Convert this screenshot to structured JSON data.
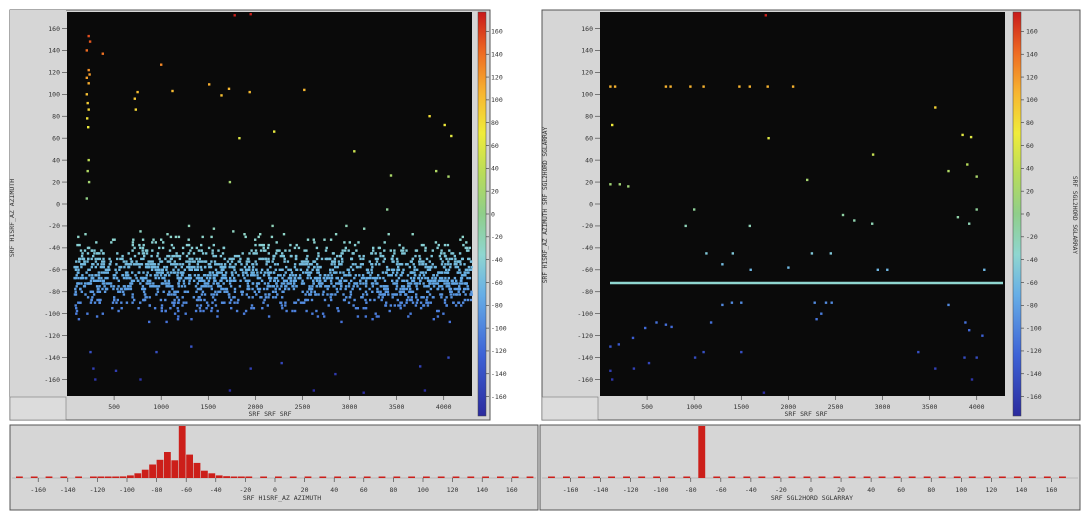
{
  "colors": {
    "panel_bg": "#d6d6d6",
    "plot_bg": "#0a0a0a",
    "frame": "#555555",
    "hist_bar": "#cc1f1a",
    "line_overlay": "#8fd6d0"
  },
  "colorbar": {
    "ticks": [
      "160",
      "140",
      "120",
      "100",
      "80",
      "60",
      "40",
      "20",
      "0",
      "-20",
      "-40",
      "-60",
      "-80",
      "-100",
      "-120",
      "-140",
      "-160"
    ],
    "range": [
      -170,
      175
    ]
  },
  "chart_data": [
    {
      "type": "scatter",
      "ylabel": "SRF H1SRF_AZ AZIMUTH",
      "xlabel": "SRF SRF SRF",
      "colorbar_label": "",
      "xlim": [
        0,
        4300
      ],
      "ylim": [
        -175,
        175
      ],
      "xticks": [
        "500",
        "1000",
        "1500",
        "2000",
        "2500",
        "3000",
        "3500",
        "4000"
      ],
      "yticks": [
        "160",
        "140",
        "120",
        "100",
        "80",
        "60",
        "40",
        "20",
        "0",
        "-20",
        "-40",
        "-60",
        "-80",
        "-100",
        "-120",
        "-140",
        "-160"
      ],
      "band": {
        "x_range": [
          80,
          4300
        ],
        "y_center": -66,
        "y_spread": 32,
        "count": 1900
      },
      "points": [
        [
          230,
          153
        ],
        [
          245,
          148
        ],
        [
          210,
          140
        ],
        [
          380,
          137
        ],
        [
          230,
          122
        ],
        [
          240,
          118
        ],
        [
          210,
          115
        ],
        [
          230,
          110
        ],
        [
          210,
          100
        ],
        [
          220,
          92
        ],
        [
          230,
          86
        ],
        [
          215,
          78
        ],
        [
          225,
          70
        ],
        [
          230,
          40
        ],
        [
          220,
          30
        ],
        [
          235,
          20
        ],
        [
          210,
          5
        ],
        [
          750,
          102
        ],
        [
          720,
          96
        ],
        [
          730,
          86
        ],
        [
          1000,
          127
        ],
        [
          1120,
          103
        ],
        [
          1510,
          109
        ],
        [
          1720,
          105
        ],
        [
          1940,
          102
        ],
        [
          2520,
          104
        ],
        [
          1640,
          99
        ],
        [
          2200,
          66
        ],
        [
          1830,
          60
        ],
        [
          3050,
          48
        ],
        [
          3440,
          26
        ],
        [
          3850,
          80
        ],
        [
          4010,
          72
        ],
        [
          4080,
          62
        ],
        [
          3920,
          30
        ],
        [
          4050,
          25
        ],
        [
          1730,
          20
        ],
        [
          3400,
          -5
        ],
        [
          250,
          -135
        ],
        [
          280,
          -150
        ],
        [
          300,
          -160
        ],
        [
          520,
          -152
        ],
        [
          780,
          -160
        ],
        [
          950,
          -135
        ],
        [
          1320,
          -130
        ],
        [
          1950,
          -150
        ],
        [
          2280,
          -145
        ],
        [
          2850,
          -155
        ],
        [
          3750,
          -148
        ],
        [
          4050,
          -140
        ],
        [
          1730,
          -170
        ],
        [
          2620,
          -170
        ],
        [
          3150,
          -172
        ],
        [
          3800,
          -170
        ],
        [
          1780,
          172
        ],
        [
          1950,
          173
        ]
      ]
    },
    {
      "type": "scatter",
      "ylabel": "SRF H1SRF_AZ AZIMUTH SRF SGL2HORD SGLARRAY",
      "xlabel": "SRF SRF SRF",
      "colorbar_label": "SRF SGL2HORD SGLARRAY",
      "xlim": [
        0,
        4300
      ],
      "ylim": [
        -175,
        175
      ],
      "xticks": [
        "500",
        "1000",
        "1500",
        "2000",
        "2500",
        "3000",
        "3500",
        "4000"
      ],
      "yticks": [
        "160",
        "140",
        "120",
        "100",
        "80",
        "60",
        "40",
        "20",
        "0",
        "-20",
        "-40",
        "-60",
        "-80",
        "-100",
        "-120",
        "-140",
        "-160"
      ],
      "hline": -72,
      "points": [
        [
          110,
          107
        ],
        [
          160,
          107
        ],
        [
          700,
          107
        ],
        [
          750,
          107
        ],
        [
          960,
          107
        ],
        [
          1100,
          107
        ],
        [
          1480,
          107
        ],
        [
          1590,
          107
        ],
        [
          1780,
          107
        ],
        [
          2050,
          107
        ],
        [
          130,
          72
        ],
        [
          1790,
          60
        ],
        [
          3560,
          88
        ],
        [
          3850,
          63
        ],
        [
          3940,
          61
        ],
        [
          2900,
          45
        ],
        [
          3700,
          30
        ],
        [
          4000,
          25
        ],
        [
          3900,
          36
        ],
        [
          110,
          18
        ],
        [
          210,
          18
        ],
        [
          300,
          16
        ],
        [
          910,
          -20
        ],
        [
          1000,
          -5
        ],
        [
          2200,
          22
        ],
        [
          2580,
          -10
        ],
        [
          2700,
          -15
        ],
        [
          2890,
          -18
        ],
        [
          3920,
          -18
        ],
        [
          4000,
          -5
        ],
        [
          3800,
          -12
        ],
        [
          1410,
          -45
        ],
        [
          1130,
          -45
        ],
        [
          1590,
          -20
        ],
        [
          1300,
          -55
        ],
        [
          1600,
          -60
        ],
        [
          2000,
          -58
        ],
        [
          2250,
          -45
        ],
        [
          2450,
          -45
        ],
        [
          2950,
          -60
        ],
        [
          3050,
          -60
        ],
        [
          4080,
          -60
        ],
        [
          110,
          -130
        ],
        [
          200,
          -128
        ],
        [
          350,
          -122
        ],
        [
          480,
          -113
        ],
        [
          600,
          -108
        ],
        [
          700,
          -110
        ],
        [
          760,
          -112
        ],
        [
          1180,
          -108
        ],
        [
          1300,
          -92
        ],
        [
          1400,
          -90
        ],
        [
          1500,
          -90
        ],
        [
          2280,
          -90
        ],
        [
          2400,
          -90
        ],
        [
          2460,
          -90
        ],
        [
          2300,
          -105
        ],
        [
          2350,
          -100
        ],
        [
          3700,
          -92
        ],
        [
          3880,
          -108
        ],
        [
          3920,
          -115
        ],
        [
          4060,
          -120
        ],
        [
          110,
          -152
        ],
        [
          130,
          -160
        ],
        [
          360,
          -150
        ],
        [
          520,
          -145
        ],
        [
          1010,
          -140
        ],
        [
          1100,
          -135
        ],
        [
          1500,
          -135
        ],
        [
          3380,
          -135
        ],
        [
          3560,
          -150
        ],
        [
          3870,
          -140
        ],
        [
          3950,
          -160
        ],
        [
          4000,
          -140
        ],
        [
          1740,
          -172
        ],
        [
          1760,
          172
        ]
      ]
    },
    {
      "type": "bar",
      "xlabel": "SRF H1SRF_AZ AZIMUTH",
      "xlim": [
        -175,
        175
      ],
      "xticks": [
        "-160",
        "-140",
        "-120",
        "-100",
        "-80",
        "-60",
        "-40",
        "-20",
        "0",
        "20",
        "40",
        "60",
        "80",
        "100",
        "120",
        "140",
        "160"
      ],
      "bin_width": 5,
      "bins": [
        [
          -175,
          0.05
        ],
        [
          -165,
          0.05
        ],
        [
          -155,
          0.05
        ],
        [
          -145,
          0.05
        ],
        [
          -135,
          0.05
        ],
        [
          -125,
          0.05
        ],
        [
          -120,
          0.1
        ],
        [
          -115,
          0.15
        ],
        [
          -110,
          0.2
        ],
        [
          -105,
          0.3
        ],
        [
          -100,
          0.5
        ],
        [
          -95,
          0.9
        ],
        [
          -90,
          1.6
        ],
        [
          -85,
          2.6
        ],
        [
          -80,
          3.5
        ],
        [
          -75,
          5.0
        ],
        [
          -70,
          3.4
        ],
        [
          -65,
          10.0
        ],
        [
          -60,
          4.5
        ],
        [
          -55,
          2.9
        ],
        [
          -50,
          1.4
        ],
        [
          -45,
          0.9
        ],
        [
          -40,
          0.5
        ],
        [
          -35,
          0.35
        ],
        [
          -30,
          0.2
        ],
        [
          -25,
          0.12
        ],
        [
          -20,
          0.08
        ],
        [
          -10,
          0.05
        ],
        [
          0,
          0.05
        ],
        [
          10,
          0.05
        ],
        [
          20,
          0.05
        ],
        [
          30,
          0.05
        ],
        [
          40,
          0.05
        ],
        [
          50,
          0.05
        ],
        [
          60,
          0.05
        ],
        [
          70,
          0.05
        ],
        [
          80,
          0.05
        ],
        [
          90,
          0.05
        ],
        [
          100,
          0.05
        ],
        [
          110,
          0.05
        ],
        [
          120,
          0.05
        ],
        [
          130,
          0.05
        ],
        [
          140,
          0.05
        ],
        [
          150,
          0.05
        ],
        [
          160,
          0.05
        ],
        [
          170,
          0.05
        ]
      ]
    },
    {
      "type": "bar",
      "xlabel": "SRF SGL2HORD SGLARRAY",
      "xlim": [
        -175,
        175
      ],
      "xticks": [
        "-160",
        "-140",
        "-120",
        "-100",
        "-80",
        "-60",
        "-40",
        "-20",
        "0",
        "20",
        "40",
        "60",
        "80",
        "100",
        "120",
        "140",
        "160"
      ],
      "bin_width": 5,
      "bins": [
        [
          -175,
          0.05
        ],
        [
          -165,
          0.05
        ],
        [
          -155,
          0.05
        ],
        [
          -145,
          0.05
        ],
        [
          -135,
          0.05
        ],
        [
          -125,
          0.05
        ],
        [
          -115,
          0.05
        ],
        [
          -105,
          0.05
        ],
        [
          -95,
          0.05
        ],
        [
          -85,
          0.05
        ],
        [
          -75,
          10.0
        ],
        [
          -65,
          0.05
        ],
        [
          -55,
          0.05
        ],
        [
          -45,
          0.05
        ],
        [
          -35,
          0.05
        ],
        [
          -25,
          0.05
        ],
        [
          -15,
          0.05
        ],
        [
          -5,
          0.05
        ],
        [
          5,
          0.05
        ],
        [
          15,
          0.05
        ],
        [
          25,
          0.05
        ],
        [
          35,
          0.05
        ],
        [
          45,
          0.05
        ],
        [
          55,
          0.05
        ],
        [
          65,
          0.05
        ],
        [
          75,
          0.05
        ],
        [
          85,
          0.05
        ],
        [
          95,
          0.05
        ],
        [
          105,
          0.05
        ],
        [
          115,
          0.05
        ],
        [
          125,
          0.05
        ],
        [
          135,
          0.05
        ],
        [
          145,
          0.05
        ],
        [
          155,
          0.05
        ],
        [
          165,
          0.05
        ]
      ]
    }
  ]
}
